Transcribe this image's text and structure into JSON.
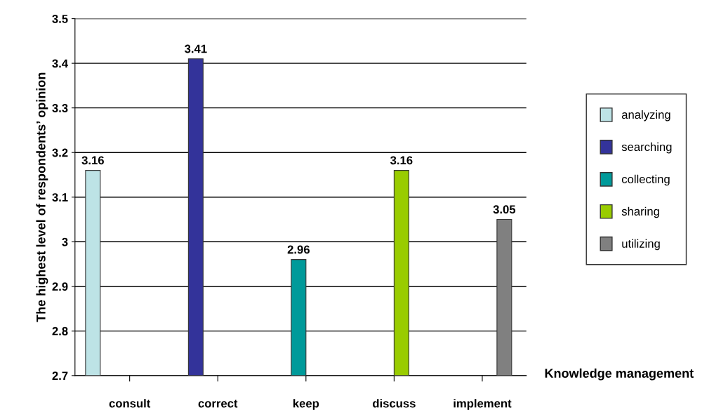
{
  "chart_data": {
    "type": "bar",
    "xlabel": "Knowledge management",
    "ylabel": "The highest level of respondents’ opinion",
    "categories": [
      "consult",
      "correct",
      "keep",
      "discuss",
      "implement"
    ],
    "series": [
      {
        "name": "analyzing",
        "color": "#bde3e6",
        "values": [
          3.16,
          null,
          null,
          null,
          null
        ]
      },
      {
        "name": "searching",
        "color": "#33339a",
        "values": [
          null,
          3.41,
          null,
          null,
          null
        ]
      },
      {
        "name": "collecting",
        "color": "#009a9a",
        "values": [
          null,
          null,
          2.96,
          null,
          null
        ]
      },
      {
        "name": "sharing",
        "color": "#99cc00",
        "values": [
          null,
          null,
          null,
          3.16,
          null
        ]
      },
      {
        "name": "utilizing",
        "color": "#808080",
        "values": [
          null,
          null,
          null,
          null,
          3.05
        ]
      }
    ],
    "ylim": [
      2.7,
      3.5
    ],
    "yticks": [
      2.7,
      2.8,
      2.9,
      3,
      3.1,
      3.2,
      3.3,
      3.4,
      3.5
    ],
    "grid": "y",
    "legend": "right",
    "data_labels": true
  }
}
